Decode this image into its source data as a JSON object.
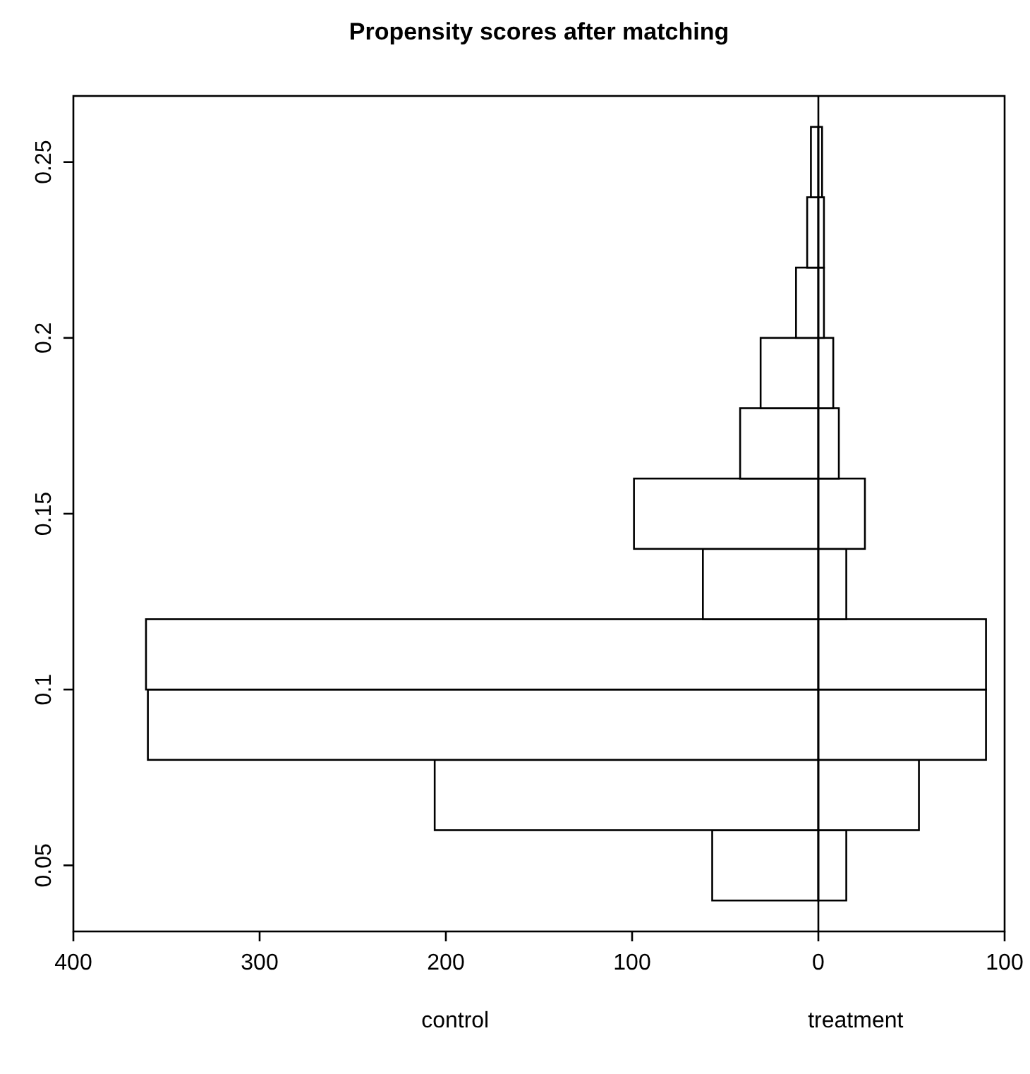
{
  "chart_data": {
    "type": "bar",
    "orientation": "horizontal",
    "title": "Propensity scores after matching",
    "x": [
      0.05,
      0.07,
      0.09,
      0.11,
      0.13,
      0.15,
      0.17,
      0.19,
      0.21,
      0.23,
      0.25
    ],
    "series": [
      {
        "color": "#ffffff",
        "values": [
          -57,
          -206,
          -360,
          -361,
          -62,
          -99,
          -42,
          -31,
          -12,
          -6,
          -4
        ]
      },
      {
        "color": "#ffffff",
        "values": [
          15,
          54,
          90,
          90,
          15,
          25,
          11,
          8,
          3,
          3,
          2
        ]
      }
    ],
    "xlim": [
      -400,
      100
    ],
    "xticks": [
      {
        "value": -400,
        "label": "400"
      },
      {
        "value": -300,
        "label": "300"
      },
      {
        "value": -200,
        "label": "200"
      },
      {
        "value": -100,
        "label": "100"
      },
      0,
      100
    ],
    "ylim": [
      0.0312,
      0.2688
    ],
    "yticks": [
      0.05,
      0.1,
      0.15,
      0.2,
      0.25
    ],
    "ref_lines": [
      {
        "axis": "x",
        "value": 0,
        "color": "#000000"
      }
    ],
    "annotations": [
      "control",
      "treatment"
    ],
    "stacked": true,
    "grid": false
  }
}
